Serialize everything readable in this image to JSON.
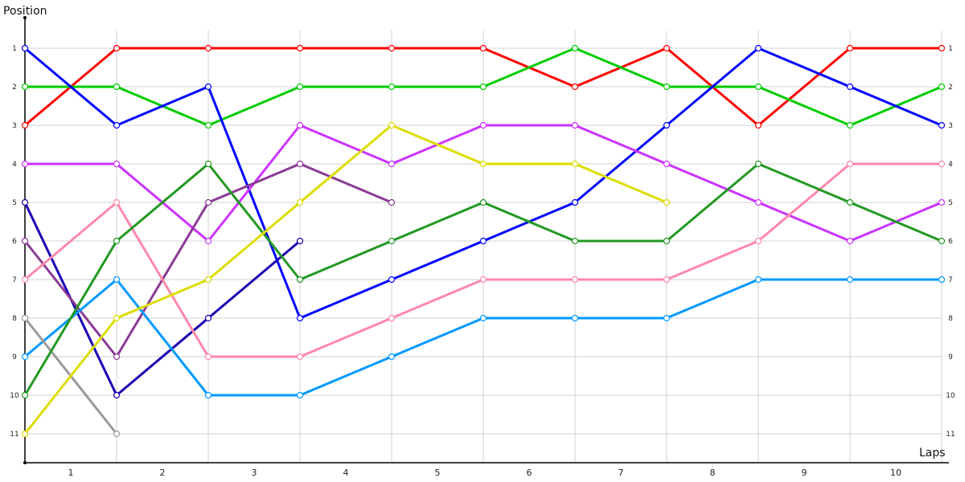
{
  "chart_data": {
    "type": "line",
    "ylabel": "Position",
    "xlabel": "Laps",
    "x_ticks": [
      "1",
      "2",
      "3",
      "4",
      "5",
      "6",
      "7",
      "8",
      "9",
      "10"
    ],
    "y_ticks": [
      "1",
      "2",
      "3",
      "4",
      "5",
      "6",
      "7",
      "8",
      "9",
      "10",
      "11"
    ],
    "ylim": [
      1,
      11
    ],
    "y_inverted": true,
    "grid": true,
    "series": [
      {
        "color": "#ff0000",
        "values": [
          3,
          1,
          1,
          1,
          1,
          1,
          2,
          1,
          3,
          1,
          1
        ]
      },
      {
        "color": "#00cc00",
        "values": [
          2,
          2,
          3,
          2,
          2,
          2,
          1,
          2,
          2,
          3,
          2
        ]
      },
      {
        "color": "#0000ff",
        "values": [
          1,
          3,
          2,
          8,
          7,
          6,
          5,
          3,
          1,
          2,
          3
        ]
      },
      {
        "color": "#cc33ff",
        "values": [
          4,
          4,
          6,
          3,
          4,
          3,
          3,
          4,
          5,
          6,
          5
        ]
      },
      {
        "color": "#1a00b3",
        "values": [
          5,
          10,
          8,
          6
        ]
      },
      {
        "color": "#8b3a96",
        "values": [
          6,
          9,
          5,
          4,
          5
        ]
      },
      {
        "color": "#ff88aa",
        "values": [
          7,
          5,
          9,
          9,
          8,
          7,
          7,
          7,
          6,
          4,
          4
        ]
      },
      {
        "color": "#0099ff",
        "values": [
          9,
          7,
          10,
          10,
          9,
          8,
          8,
          8,
          7,
          7,
          7
        ]
      },
      {
        "color": "#999999",
        "values": [
          8,
          11
        ]
      },
      {
        "color": "#229922",
        "values": [
          10,
          6,
          4,
          7,
          6,
          5,
          6,
          6,
          4,
          5,
          6
        ]
      },
      {
        "color": "#dddd00",
        "values": [
          11,
          8,
          7,
          5,
          3,
          4,
          4,
          5
        ]
      }
    ]
  }
}
